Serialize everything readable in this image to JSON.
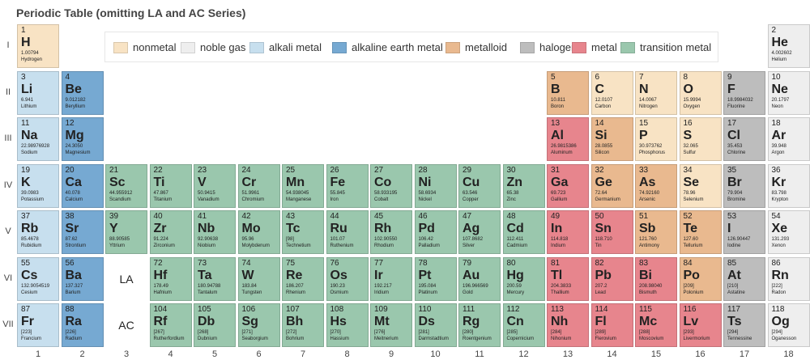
{
  "title": "Periodic Table (omitting LA and AC Series)",
  "periods": [
    "I",
    "II",
    "III",
    "IV",
    "V",
    "VI",
    "VII"
  ],
  "groups": [
    "1",
    "2",
    "3",
    "4",
    "5",
    "6",
    "7",
    "8",
    "9",
    "10",
    "11",
    "12",
    "13",
    "14",
    "15",
    "16",
    "17",
    "18"
  ],
  "placeholders": [
    {
      "text": "LA",
      "period": 6,
      "group": 3
    },
    {
      "text": "AC",
      "period": 7,
      "group": 3
    }
  ],
  "categories": {
    "nonmetal": {
      "label": "nonmetal",
      "color": "#f8e3c4"
    },
    "noble_gas": {
      "label": "noble gas",
      "color": "#eeeeee"
    },
    "alkali_metal": {
      "label": "alkali metal",
      "color": "#c7dfee"
    },
    "alkaline_earth_metal": {
      "label": "alkaline earth metal",
      "color": "#76a9d2"
    },
    "metalloid": {
      "label": "metalloid",
      "color": "#e9b98f"
    },
    "halogen": {
      "label": "halogen",
      "color": "#bdbdbd"
    },
    "metal": {
      "label": "metal",
      "color": "#e7858d"
    },
    "transition_metal": {
      "label": "transition metal",
      "color": "#9ac7ad"
    }
  },
  "legend": [
    "nonmetal",
    "noble_gas",
    "alkali_metal",
    "alkaline_earth_metal",
    "metalloid",
    "halogen",
    "metal",
    "transition_metal"
  ],
  "elements": [
    {
      "n": 1,
      "s": "H",
      "name": "Hydrogen",
      "m": "1.00794",
      "p": 1,
      "g": 1,
      "c": "nonmetal"
    },
    {
      "n": 2,
      "s": "He",
      "name": "Helium",
      "m": "4.002602",
      "p": 1,
      "g": 18,
      "c": "noble_gas"
    },
    {
      "n": 3,
      "s": "Li",
      "name": "Lithium",
      "m": "6.941",
      "p": 2,
      "g": 1,
      "c": "alkali_metal"
    },
    {
      "n": 4,
      "s": "Be",
      "name": "Beryllium",
      "m": "9.012182",
      "p": 2,
      "g": 2,
      "c": "alkaline_earth_metal"
    },
    {
      "n": 5,
      "s": "B",
      "name": "Boron",
      "m": "10.811",
      "p": 2,
      "g": 13,
      "c": "metalloid"
    },
    {
      "n": 6,
      "s": "C",
      "name": "Carbon",
      "m": "12.0107",
      "p": 2,
      "g": 14,
      "c": "nonmetal"
    },
    {
      "n": 7,
      "s": "N",
      "name": "Nitrogen",
      "m": "14.0067",
      "p": 2,
      "g": 15,
      "c": "nonmetal"
    },
    {
      "n": 8,
      "s": "O",
      "name": "Oxygen",
      "m": "15.9994",
      "p": 2,
      "g": 16,
      "c": "nonmetal"
    },
    {
      "n": 9,
      "s": "F",
      "name": "Fluorine",
      "m": "18.9984032",
      "p": 2,
      "g": 17,
      "c": "halogen"
    },
    {
      "n": 10,
      "s": "Ne",
      "name": "Neon",
      "m": "20.1797",
      "p": 2,
      "g": 18,
      "c": "noble_gas"
    },
    {
      "n": 11,
      "s": "Na",
      "name": "Sodium",
      "m": "22.98976928",
      "p": 3,
      "g": 1,
      "c": "alkali_metal"
    },
    {
      "n": 12,
      "s": "Mg",
      "name": "Magnesium",
      "m": "24.3050",
      "p": 3,
      "g": 2,
      "c": "alkaline_earth_metal"
    },
    {
      "n": 13,
      "s": "Al",
      "name": "Aluminum",
      "m": "26.9815386",
      "p": 3,
      "g": 13,
      "c": "metal"
    },
    {
      "n": 14,
      "s": "Si",
      "name": "Silicon",
      "m": "28.0855",
      "p": 3,
      "g": 14,
      "c": "metalloid"
    },
    {
      "n": 15,
      "s": "P",
      "name": "Phosphorus",
      "m": "30.973762",
      "p": 3,
      "g": 15,
      "c": "nonmetal"
    },
    {
      "n": 16,
      "s": "S",
      "name": "Sulfur",
      "m": "32.065",
      "p": 3,
      "g": 16,
      "c": "nonmetal"
    },
    {
      "n": 17,
      "s": "Cl",
      "name": "Chlorine",
      "m": "35.453",
      "p": 3,
      "g": 17,
      "c": "halogen"
    },
    {
      "n": 18,
      "s": "Ar",
      "name": "Argon",
      "m": "39.948",
      "p": 3,
      "g": 18,
      "c": "noble_gas"
    },
    {
      "n": 19,
      "s": "K",
      "name": "Potassium",
      "m": "39.0983",
      "p": 4,
      "g": 1,
      "c": "alkali_metal"
    },
    {
      "n": 20,
      "s": "Ca",
      "name": "Calcium",
      "m": "40.078",
      "p": 4,
      "g": 2,
      "c": "alkaline_earth_metal"
    },
    {
      "n": 21,
      "s": "Sc",
      "name": "Scandium",
      "m": "44.955912",
      "p": 4,
      "g": 3,
      "c": "transition_metal"
    },
    {
      "n": 22,
      "s": "Ti",
      "name": "Titanium",
      "m": "47.867",
      "p": 4,
      "g": 4,
      "c": "transition_metal"
    },
    {
      "n": 23,
      "s": "V",
      "name": "Vanadium",
      "m": "50.9415",
      "p": 4,
      "g": 5,
      "c": "transition_metal"
    },
    {
      "n": 24,
      "s": "Cr",
      "name": "Chromium",
      "m": "51.9961",
      "p": 4,
      "g": 6,
      "c": "transition_metal"
    },
    {
      "n": 25,
      "s": "Mn",
      "name": "Manganese",
      "m": "54.938045",
      "p": 4,
      "g": 7,
      "c": "transition_metal"
    },
    {
      "n": 26,
      "s": "Fe",
      "name": "Iron",
      "m": "55.845",
      "p": 4,
      "g": 8,
      "c": "transition_metal"
    },
    {
      "n": 27,
      "s": "Co",
      "name": "Cobalt",
      "m": "58.933195",
      "p": 4,
      "g": 9,
      "c": "transition_metal"
    },
    {
      "n": 28,
      "s": "Ni",
      "name": "Nickel",
      "m": "58.6934",
      "p": 4,
      "g": 10,
      "c": "transition_metal"
    },
    {
      "n": 29,
      "s": "Cu",
      "name": "Copper",
      "m": "63.546",
      "p": 4,
      "g": 11,
      "c": "transition_metal"
    },
    {
      "n": 30,
      "s": "Zn",
      "name": "Zinc",
      "m": "65.38",
      "p": 4,
      "g": 12,
      "c": "transition_metal"
    },
    {
      "n": 31,
      "s": "Ga",
      "name": "Gallium",
      "m": "69.723",
      "p": 4,
      "g": 13,
      "c": "metal"
    },
    {
      "n": 32,
      "s": "Ge",
      "name": "Germanium",
      "m": "72.64",
      "p": 4,
      "g": 14,
      "c": "metalloid"
    },
    {
      "n": 33,
      "s": "As",
      "name": "Arsenic",
      "m": "74.92160",
      "p": 4,
      "g": 15,
      "c": "metalloid"
    },
    {
      "n": 34,
      "s": "Se",
      "name": "Selenium",
      "m": "78.96",
      "p": 4,
      "g": 16,
      "c": "nonmetal"
    },
    {
      "n": 35,
      "s": "Br",
      "name": "Bromine",
      "m": "79.904",
      "p": 4,
      "g": 17,
      "c": "halogen"
    },
    {
      "n": 36,
      "s": "Kr",
      "name": "Krypton",
      "m": "83.798",
      "p": 4,
      "g": 18,
      "c": "noble_gas"
    },
    {
      "n": 37,
      "s": "Rb",
      "name": "Rubidium",
      "m": "85.4678",
      "p": 5,
      "g": 1,
      "c": "alkali_metal"
    },
    {
      "n": 38,
      "s": "Sr",
      "name": "Strontium",
      "m": "87.62",
      "p": 5,
      "g": 2,
      "c": "alkaline_earth_metal"
    },
    {
      "n": 39,
      "s": "Y",
      "name": "Yttrium",
      "m": "88.90585",
      "p": 5,
      "g": 3,
      "c": "transition_metal"
    },
    {
      "n": 40,
      "s": "Zr",
      "name": "Zirconium",
      "m": "91.224",
      "p": 5,
      "g": 4,
      "c": "transition_metal"
    },
    {
      "n": 41,
      "s": "Nb",
      "name": "Niobium",
      "m": "92.90638",
      "p": 5,
      "g": 5,
      "c": "transition_metal"
    },
    {
      "n": 42,
      "s": "Mo",
      "name": "Molybdenum",
      "m": "95.96",
      "p": 5,
      "g": 6,
      "c": "transition_metal"
    },
    {
      "n": 43,
      "s": "Tc",
      "name": "Technetium",
      "m": "[98]",
      "p": 5,
      "g": 7,
      "c": "transition_metal"
    },
    {
      "n": 44,
      "s": "Ru",
      "name": "Ruthenium",
      "m": "101.07",
      "p": 5,
      "g": 8,
      "c": "transition_metal"
    },
    {
      "n": 45,
      "s": "Rh",
      "name": "Rhodium",
      "m": "102.90550",
      "p": 5,
      "g": 9,
      "c": "transition_metal"
    },
    {
      "n": 46,
      "s": "Pd",
      "name": "Palladium",
      "m": "106.42",
      "p": 5,
      "g": 10,
      "c": "transition_metal"
    },
    {
      "n": 47,
      "s": "Ag",
      "name": "Silver",
      "m": "107.8682",
      "p": 5,
      "g": 11,
      "c": "transition_metal"
    },
    {
      "n": 48,
      "s": "Cd",
      "name": "Cadmium",
      "m": "112.411",
      "p": 5,
      "g": 12,
      "c": "transition_metal"
    },
    {
      "n": 49,
      "s": "In",
      "name": "Indium",
      "m": "114.818",
      "p": 5,
      "g": 13,
      "c": "metal"
    },
    {
      "n": 50,
      "s": "Sn",
      "name": "Tin",
      "m": "118.710",
      "p": 5,
      "g": 14,
      "c": "metal"
    },
    {
      "n": 51,
      "s": "Sb",
      "name": "Antimony",
      "m": "121.760",
      "p": 5,
      "g": 15,
      "c": "metalloid"
    },
    {
      "n": 52,
      "s": "Te",
      "name": "Tellurium",
      "m": "127.60",
      "p": 5,
      "g": 16,
      "c": "metalloid"
    },
    {
      "n": 53,
      "s": "I",
      "name": "Iodine",
      "m": "126.90447",
      "p": 5,
      "g": 17,
      "c": "halogen"
    },
    {
      "n": 54,
      "s": "Xe",
      "name": "Xenon",
      "m": "131.293",
      "p": 5,
      "g": 18,
      "c": "noble_gas"
    },
    {
      "n": 55,
      "s": "Cs",
      "name": "Cesium",
      "m": "132.9054519",
      "p": 6,
      "g": 1,
      "c": "alkali_metal"
    },
    {
      "n": 56,
      "s": "Ba",
      "name": "Barium",
      "m": "137.327",
      "p": 6,
      "g": 2,
      "c": "alkaline_earth_metal"
    },
    {
      "n": 72,
      "s": "Hf",
      "name": "Hafnium",
      "m": "178.49",
      "p": 6,
      "g": 4,
      "c": "transition_metal"
    },
    {
      "n": 73,
      "s": "Ta",
      "name": "Tantalum",
      "m": "180.94788",
      "p": 6,
      "g": 5,
      "c": "transition_metal"
    },
    {
      "n": 74,
      "s": "W",
      "name": "Tungsten",
      "m": "183.84",
      "p": 6,
      "g": 6,
      "c": "transition_metal"
    },
    {
      "n": 75,
      "s": "Re",
      "name": "Rhenium",
      "m": "186.207",
      "p": 6,
      "g": 7,
      "c": "transition_metal"
    },
    {
      "n": 76,
      "s": "Os",
      "name": "Osmium",
      "m": "190.23",
      "p": 6,
      "g": 8,
      "c": "transition_metal"
    },
    {
      "n": 77,
      "s": "Ir",
      "name": "Iridium",
      "m": "192.217",
      "p": 6,
      "g": 9,
      "c": "transition_metal"
    },
    {
      "n": 78,
      "s": "Pt",
      "name": "Platinum",
      "m": "195.084",
      "p": 6,
      "g": 10,
      "c": "transition_metal"
    },
    {
      "n": 79,
      "s": "Au",
      "name": "Gold",
      "m": "196.966569",
      "p": 6,
      "g": 11,
      "c": "transition_metal"
    },
    {
      "n": 80,
      "s": "Hg",
      "name": "Mercury",
      "m": "200.59",
      "p": 6,
      "g": 12,
      "c": "transition_metal"
    },
    {
      "n": 81,
      "s": "Tl",
      "name": "Thallium",
      "m": "204.3833",
      "p": 6,
      "g": 13,
      "c": "metal"
    },
    {
      "n": 82,
      "s": "Pb",
      "name": "Lead",
      "m": "207.2",
      "p": 6,
      "g": 14,
      "c": "metal"
    },
    {
      "n": 83,
      "s": "Bi",
      "name": "Bismuth",
      "m": "208.98040",
      "p": 6,
      "g": 15,
      "c": "metal"
    },
    {
      "n": 84,
      "s": "Po",
      "name": "Polonium",
      "m": "[209]",
      "p": 6,
      "g": 16,
      "c": "metalloid"
    },
    {
      "n": 85,
      "s": "At",
      "name": "Astatine",
      "m": "[210]",
      "p": 6,
      "g": 17,
      "c": "halogen"
    },
    {
      "n": 86,
      "s": "Rn",
      "name": "Radon",
      "m": "[222]",
      "p": 6,
      "g": 18,
      "c": "noble_gas"
    },
    {
      "n": 87,
      "s": "Fr",
      "name": "Francium",
      "m": "[223]",
      "p": 7,
      "g": 1,
      "c": "alkali_metal"
    },
    {
      "n": 88,
      "s": "Ra",
      "name": "Radium",
      "m": "[226]",
      "p": 7,
      "g": 2,
      "c": "alkaline_earth_metal"
    },
    {
      "n": 104,
      "s": "Rf",
      "name": "Rutherfordium",
      "m": "[267]",
      "p": 7,
      "g": 4,
      "c": "transition_metal"
    },
    {
      "n": 105,
      "s": "Db",
      "name": "Dubnium",
      "m": "[268]",
      "p": 7,
      "g": 5,
      "c": "transition_metal"
    },
    {
      "n": 106,
      "s": "Sg",
      "name": "Seaborgium",
      "m": "[271]",
      "p": 7,
      "g": 6,
      "c": "transition_metal"
    },
    {
      "n": 107,
      "s": "Bh",
      "name": "Bohrium",
      "m": "[272]",
      "p": 7,
      "g": 7,
      "c": "transition_metal"
    },
    {
      "n": 108,
      "s": "Hs",
      "name": "Hassium",
      "m": "[270]",
      "p": 7,
      "g": 8,
      "c": "transition_metal"
    },
    {
      "n": 109,
      "s": "Mt",
      "name": "Meitnerium",
      "m": "[276]",
      "p": 7,
      "g": 9,
      "c": "transition_metal"
    },
    {
      "n": 110,
      "s": "Ds",
      "name": "Darmstadtium",
      "m": "[281]",
      "p": 7,
      "g": 10,
      "c": "transition_metal"
    },
    {
      "n": 111,
      "s": "Rg",
      "name": "Roentgenium",
      "m": "[280]",
      "p": 7,
      "g": 11,
      "c": "transition_metal"
    },
    {
      "n": 112,
      "s": "Cn",
      "name": "Copernicium",
      "m": "[285]",
      "p": 7,
      "g": 12,
      "c": "transition_metal"
    },
    {
      "n": 113,
      "s": "Nh",
      "name": "Nihonium",
      "m": "[284]",
      "p": 7,
      "g": 13,
      "c": "metal"
    },
    {
      "n": 114,
      "s": "Fl",
      "name": "Flerovium",
      "m": "[289]",
      "p": 7,
      "g": 14,
      "c": "metal"
    },
    {
      "n": 115,
      "s": "Mc",
      "name": "Moscovium",
      "m": "[288]",
      "p": 7,
      "g": 15,
      "c": "metal"
    },
    {
      "n": 116,
      "s": "Lv",
      "name": "Livermorium",
      "m": "[293]",
      "p": 7,
      "g": 16,
      "c": "metal"
    },
    {
      "n": 117,
      "s": "Ts",
      "name": "Tennessine",
      "m": "[294]",
      "p": 7,
      "g": 17,
      "c": "halogen"
    },
    {
      "n": 118,
      "s": "Og",
      "name": "Oganesson",
      "m": "[294]",
      "p": 7,
      "g": 18,
      "c": "noble_gas"
    }
  ]
}
